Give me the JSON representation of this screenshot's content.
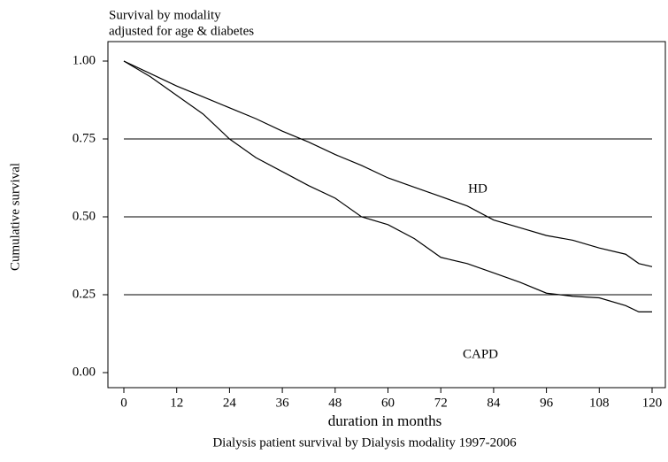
{
  "chart_data": {
    "type": "line",
    "title": "Survival by modality",
    "subtitle": "adjusted for age & diabetes",
    "caption": "Dialysis patient survival by Dialysis modality 1997-2006",
    "x_label": "duration in months",
    "y_label": "Cumulative survival",
    "x": [
      0,
      6,
      12,
      18,
      24,
      30,
      36,
      42,
      48,
      54,
      60,
      66,
      72,
      78,
      84,
      90,
      96,
      102,
      108,
      114,
      117,
      120
    ],
    "series": [
      {
        "name": "HD",
        "color": "#000000",
        "values": [
          1.0,
          0.96,
          0.92,
          0.885,
          0.85,
          0.815,
          0.775,
          0.74,
          0.7,
          0.665,
          0.625,
          0.595,
          0.565,
          0.535,
          0.49,
          0.465,
          0.44,
          0.425,
          0.4,
          0.38,
          0.35,
          0.34
        ]
      },
      {
        "name": "CAPD",
        "color": "#000000",
        "values": [
          1.0,
          0.95,
          0.89,
          0.83,
          0.75,
          0.69,
          0.645,
          0.6,
          0.56,
          0.5,
          0.475,
          0.43,
          0.37,
          0.35,
          0.32,
          0.29,
          0.255,
          0.245,
          0.24,
          0.215,
          0.195,
          0.195
        ]
      }
    ],
    "xlim": [
      0,
      120
    ],
    "xticks": [
      0,
      12,
      24,
      36,
      48,
      60,
      72,
      84,
      96,
      108,
      120
    ],
    "ylim": [
      0,
      1
    ],
    "yticks": [
      {
        "value": 0,
        "label": "0.00"
      },
      {
        "value": 0.25,
        "label": "0.25"
      },
      {
        "value": 0.5,
        "label": "0.50"
      },
      {
        "value": 0.75,
        "label": "0.75"
      },
      {
        "value": 1,
        "label": "1.00"
      }
    ],
    "reference_lines": [
      0.25,
      0.5,
      0.75
    ],
    "legend": "none"
  }
}
